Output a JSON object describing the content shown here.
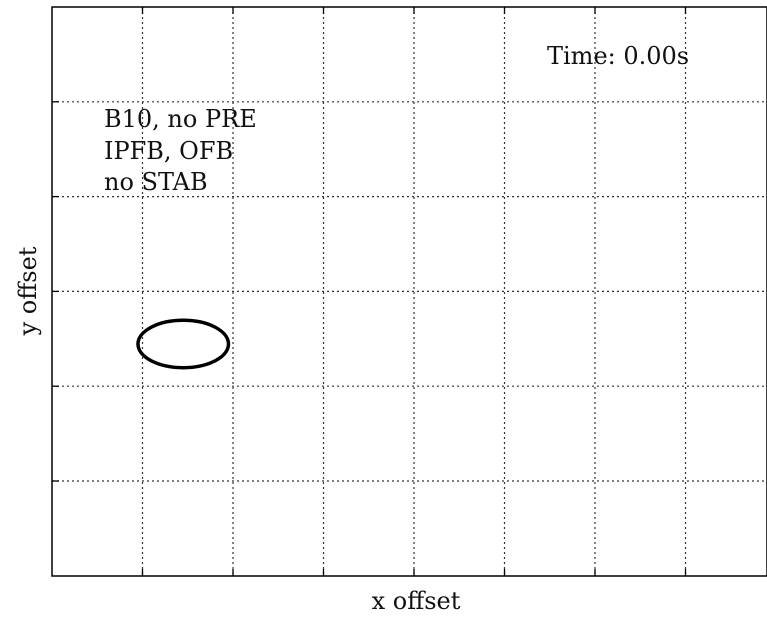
{
  "chart_data": {
    "type": "scatter",
    "title": "",
    "xlabel": "x offset",
    "ylabel": "y offset",
    "grid": true,
    "x_gridlines": 8,
    "y_gridlines": 5,
    "tick_labels_shown": false,
    "annotations": {
      "time": "Time: 0.00s",
      "config_lines": [
        "B10, no PRE",
        "IPFB, OFB",
        "no STAB"
      ]
    },
    "series": [
      {
        "shape": "ellipse",
        "color": "#000000",
        "center_grid": [
          1.45,
          2.5
        ],
        "radius_grid": [
          0.5,
          0.25
        ]
      }
    ]
  },
  "colors": {
    "axis": "#000000",
    "grid": "#333333",
    "curve": "#000000",
    "text": "#111111"
  }
}
